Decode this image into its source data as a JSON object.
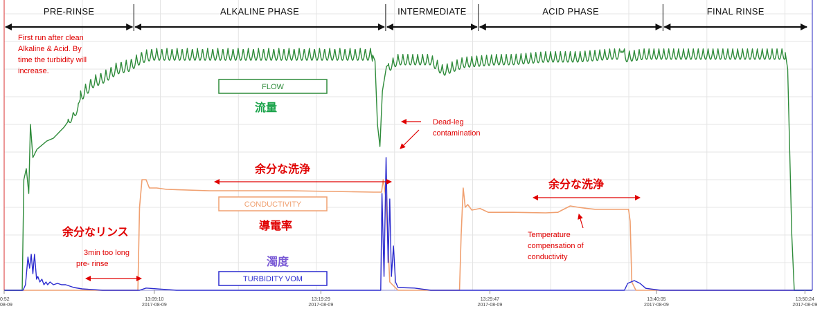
{
  "chart_data": {
    "type": "line",
    "phases": [
      {
        "name": "PRE-RINSE",
        "start_min": 0,
        "end_min": 15.8
      },
      {
        "name": "ALKALINE PHASE",
        "start_min": 15.8,
        "end_min": 46.5
      },
      {
        "name": "INTERMEDIATE",
        "start_min": 46.5,
        "end_min": 57.8
      },
      {
        "name": "ACID PHASE",
        "start_min": 57.8,
        "end_min": 80.3
      },
      {
        "name": "FINAL RINSE",
        "start_min": 80.3,
        "end_min": 98.0
      }
    ],
    "x_ticks": [
      {
        "min": 0,
        "time": "0:52",
        "date": "08-09"
      },
      {
        "min": 18.3,
        "time": "13:09:10",
        "date": "2017-08-09"
      },
      {
        "min": 38.6,
        "time": "13:19:29",
        "date": "2017-08-09"
      },
      {
        "min": 59.2,
        "time": "13:29:47",
        "date": "2017-08-09"
      },
      {
        "min": 79.5,
        "time": "13:40:05",
        "date": "2017-08-09"
      },
      {
        "min": 97.6,
        "time": "13:50:24",
        "date": "2017-08-09"
      }
    ],
    "xlim": [
      0,
      98.5
    ],
    "ylim": [
      0,
      100
    ],
    "grid": true,
    "series": [
      {
        "name": "FLOW",
        "label_jp": "流量",
        "color": "#2e8b3a",
        "points": [
          [
            0,
            0
          ],
          [
            2.2,
            0
          ],
          [
            2.4,
            40
          ],
          [
            2.7,
            44
          ],
          [
            3.0,
            35
          ],
          [
            3.2,
            60
          ],
          [
            3.5,
            48
          ],
          [
            4.0,
            51
          ],
          [
            5.2,
            54
          ],
          [
            6.0,
            55
          ],
          [
            7.3,
            59
          ],
          [
            9.0,
            66
          ],
          [
            9.3,
            71
          ],
          [
            10.8,
            76
          ],
          [
            12.3,
            78
          ],
          [
            13.8,
            81
          ],
          [
            15.3,
            82
          ],
          [
            16.8,
            85
          ],
          [
            18.0,
            86
          ],
          [
            20,
            86
          ],
          [
            25,
            86
          ],
          [
            30,
            86
          ],
          [
            35,
            86
          ],
          [
            40,
            86
          ],
          [
            44.8,
            86
          ],
          [
            45.2,
            83
          ],
          [
            45.5,
            60
          ],
          [
            45.8,
            52
          ],
          [
            46.1,
            72
          ],
          [
            46.6,
            81
          ],
          [
            48,
            84
          ],
          [
            52,
            84
          ],
          [
            53.5,
            80
          ],
          [
            56,
            83
          ],
          [
            60,
            84
          ],
          [
            62,
            84
          ],
          [
            66,
            85
          ],
          [
            70,
            85
          ],
          [
            74,
            86
          ],
          [
            75,
            86
          ],
          [
            75.3,
            89
          ],
          [
            75.7,
            85
          ],
          [
            78,
            86
          ],
          [
            80,
            86
          ],
          [
            82,
            86
          ],
          [
            90,
            86
          ],
          [
            95.2,
            86
          ],
          [
            95.5,
            80
          ],
          [
            96,
            20
          ],
          [
            96.3,
            0
          ],
          [
            98.5,
            0
          ]
        ],
        "oscillation": [
          {
            "from_min": 7.8,
            "to_min": 9.3,
            "period_min": 0.62,
            "amp": 2.4
          },
          {
            "from_min": 9.3,
            "to_min": 44.9,
            "period_min": 0.62,
            "amp": 4.3
          },
          {
            "from_min": 46.8,
            "to_min": 95.2,
            "period_min": 0.6,
            "amp": 3.8
          }
        ]
      },
      {
        "name": "CONDUCTIVITY",
        "label_jp": "導電率",
        "color": "#f0a070",
        "points": [
          [
            0,
            0
          ],
          [
            16.3,
            0
          ],
          [
            16.5,
            30
          ],
          [
            16.8,
            40
          ],
          [
            17.3,
            40
          ],
          [
            17.7,
            37
          ],
          [
            18.6,
            37
          ],
          [
            19.8,
            36.5
          ],
          [
            25,
            36
          ],
          [
            35,
            36
          ],
          [
            45,
            35.5
          ],
          [
            46.0,
            35.5
          ],
          [
            46.2,
            40
          ],
          [
            46.5,
            34
          ],
          [
            47.0,
            3
          ],
          [
            48.0,
            0
          ],
          [
            55.5,
            0
          ],
          [
            55.7,
            20
          ],
          [
            55.95,
            37
          ],
          [
            56.2,
            30
          ],
          [
            56.5,
            31
          ],
          [
            57.0,
            29
          ],
          [
            58,
            29.6
          ],
          [
            59,
            28.2
          ],
          [
            62,
            28.2
          ],
          [
            66,
            28
          ],
          [
            67.5,
            28.2
          ],
          [
            68.0,
            29
          ],
          [
            69.0,
            30.5
          ],
          [
            70,
            30
          ],
          [
            71,
            29.6
          ],
          [
            72,
            29.3
          ],
          [
            74,
            29.3
          ],
          [
            76.1,
            29.3
          ],
          [
            76.3,
            25
          ],
          [
            76.5,
            3
          ],
          [
            77,
            0
          ],
          [
            98.5,
            0
          ]
        ]
      },
      {
        "name": "TURBIDITY VOM",
        "label_jp": "濁度",
        "color": "#2b2bcf",
        "points": [
          [
            0,
            0
          ],
          [
            2.3,
            0
          ],
          [
            2.6,
            2
          ],
          [
            2.9,
            12
          ],
          [
            3.1,
            8
          ],
          [
            3.3,
            13
          ],
          [
            3.5,
            6
          ],
          [
            3.7,
            13
          ],
          [
            3.95,
            4
          ],
          [
            4.1,
            5
          ],
          [
            4.35,
            3
          ],
          [
            4.6,
            4
          ],
          [
            4.85,
            2
          ],
          [
            5.1,
            3
          ],
          [
            5.3,
            2
          ],
          [
            5.6,
            3
          ],
          [
            6,
            2
          ],
          [
            6.5,
            2.5
          ],
          [
            7,
            2
          ],
          [
            7.5,
            2
          ],
          [
            8.5,
            1
          ],
          [
            9.5,
            0.5
          ],
          [
            12,
            0
          ],
          [
            16.5,
            0
          ],
          [
            17.3,
            0.8
          ],
          [
            19.2,
            0.4
          ],
          [
            21,
            0
          ],
          [
            45.9,
            0
          ],
          [
            46.05,
            35
          ],
          [
            46.3,
            5
          ],
          [
            46.55,
            48
          ],
          [
            46.8,
            10
          ],
          [
            47.0,
            33
          ],
          [
            47.2,
            5
          ],
          [
            47.45,
            16
          ],
          [
            47.7,
            3
          ],
          [
            48,
            1
          ],
          [
            50,
            0.8
          ],
          [
            52,
            0
          ],
          [
            75.6,
            0
          ],
          [
            76,
            2.5
          ],
          [
            76.8,
            3.5
          ],
          [
            77.5,
            2.5
          ],
          [
            78.2,
            0.7
          ],
          [
            80,
            0
          ],
          [
            98.5,
            0
          ]
        ]
      }
    ]
  },
  "annotations": {
    "note_first_run": [
      "First run after clean",
      "Alkaline & Acid. By",
      "time the turbidity will",
      "increase."
    ],
    "note_dead_leg": [
      "Dead-leg",
      "contamination"
    ],
    "note_pre_rinse": [
      "3min too long",
      "pre- rinse"
    ],
    "note_temp": [
      "Temperature",
      "compensation of",
      "conductivity"
    ],
    "jp_excess_wash": "余分な洗浄",
    "jp_excess_rinse": "余分なリンス"
  }
}
